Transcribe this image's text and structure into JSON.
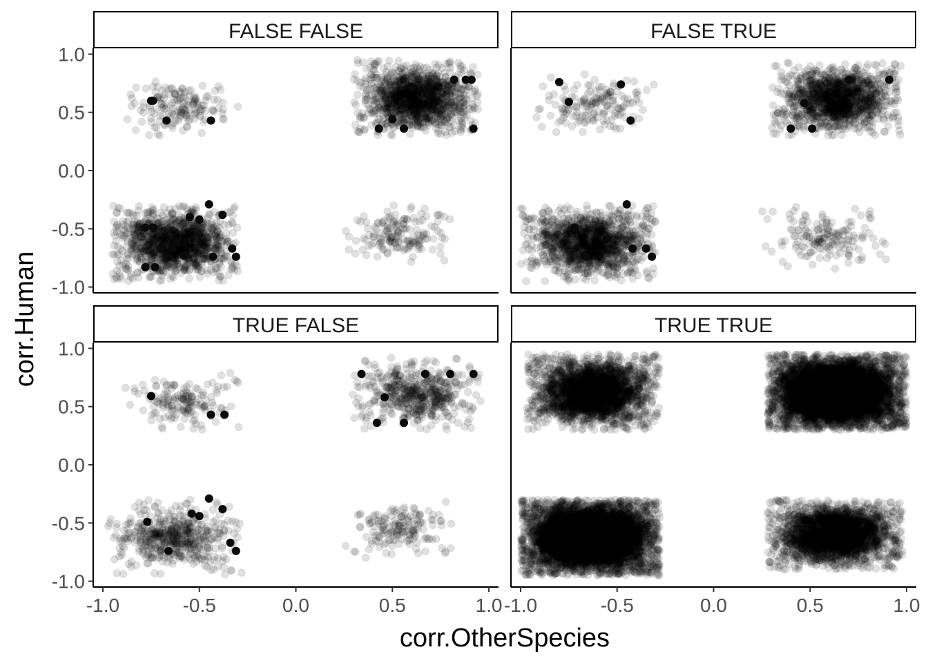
{
  "chart_data": {
    "type": "scatter",
    "xlabel": "corr.OtherSpecies",
    "ylabel": "corr.Human",
    "xlim": [
      -1.05,
      1.05
    ],
    "ylim": [
      -1.05,
      1.05
    ],
    "x_ticks": [
      -1.0,
      -0.5,
      0.0,
      0.5,
      1.0
    ],
    "y_ticks": [
      -1.0,
      -0.5,
      0.0,
      0.5,
      1.0
    ],
    "x_tick_labels": [
      "-1.0",
      "-0.5",
      "0.0",
      "0.5",
      "1.0"
    ],
    "y_tick_labels": [
      "-1.0",
      "-0.5",
      "0.0",
      "0.5",
      "1.0"
    ],
    "grid": false,
    "facet_layout": "2x2",
    "point_color": "#000000",
    "point_alpha": 0.12,
    "facets": [
      {
        "label": "FALSE FALSE",
        "clusters": [
          {
            "x_range": [
              -0.95,
              -0.3
            ],
            "y_range": [
              -0.95,
              -0.3
            ],
            "density": "dense"
          },
          {
            "x_range": [
              0.3,
              0.95
            ],
            "y_range": [
              0.3,
              0.95
            ],
            "density": "dense"
          },
          {
            "x_range": [
              -0.9,
              -0.3
            ],
            "y_range": [
              0.3,
              0.8
            ],
            "density": "sparse"
          },
          {
            "x_range": [
              0.25,
              0.8
            ],
            "y_range": [
              -0.8,
              -0.3
            ],
            "density": "sparse"
          }
        ],
        "opaque_points": [
          [
            -0.75,
            0.6
          ],
          [
            -0.74,
            0.6
          ],
          [
            -0.67,
            0.43
          ],
          [
            -0.44,
            0.43
          ],
          [
            -0.45,
            -0.29
          ],
          [
            -0.5,
            -0.42
          ],
          [
            -0.55,
            -0.4
          ],
          [
            -0.62,
            -0.62
          ],
          [
            -0.7,
            -0.67
          ],
          [
            -0.78,
            -0.49
          ],
          [
            -0.74,
            -0.49
          ],
          [
            -0.66,
            -0.74
          ],
          [
            -0.64,
            -0.67
          ],
          [
            -0.58,
            -0.73
          ],
          [
            -0.43,
            -0.74
          ],
          [
            -0.33,
            -0.67
          ],
          [
            -0.31,
            -0.74
          ],
          [
            -0.78,
            -0.83
          ],
          [
            -0.73,
            -0.83
          ],
          [
            -0.38,
            -0.38
          ],
          [
            0.43,
            0.36
          ],
          [
            0.56,
            0.36
          ],
          [
            0.5,
            0.44
          ],
          [
            0.55,
            0.58
          ],
          [
            0.68,
            0.7
          ],
          [
            0.82,
            0.78
          ],
          [
            0.88,
            0.78
          ],
          [
            0.91,
            0.78
          ],
          [
            0.92,
            0.36
          ],
          [
            0.6,
            0.72
          ]
        ]
      },
      {
        "label": "FALSE TRUE",
        "clusters": [
          {
            "x_range": [
              -1.0,
              -0.3
            ],
            "y_range": [
              -0.95,
              -0.3
            ],
            "density": "dense"
          },
          {
            "x_range": [
              0.3,
              0.97
            ],
            "y_range": [
              0.3,
              0.93
            ],
            "density": "dense"
          },
          {
            "x_range": [
              -0.95,
              -0.3
            ],
            "y_range": [
              0.3,
              0.85
            ],
            "density": "sparse"
          },
          {
            "x_range": [
              0.25,
              0.9
            ],
            "y_range": [
              -0.85,
              -0.3
            ],
            "density": "sparse"
          }
        ],
        "opaque_points": [
          [
            -0.75,
            0.59
          ],
          [
            -0.43,
            0.43
          ],
          [
            -0.8,
            0.76
          ],
          [
            -0.48,
            0.74
          ],
          [
            -0.45,
            -0.29
          ],
          [
            -0.42,
            -0.67
          ],
          [
            -0.72,
            -0.49
          ],
          [
            -0.66,
            -0.74
          ],
          [
            -0.35,
            -0.67
          ],
          [
            -0.32,
            -0.74
          ],
          [
            0.47,
            0.58
          ],
          [
            0.51,
            0.36
          ],
          [
            0.7,
            0.78
          ],
          [
            0.91,
            0.78
          ],
          [
            0.4,
            0.36
          ]
        ]
      },
      {
        "label": "TRUE FALSE",
        "clusters": [
          {
            "x_range": [
              -0.98,
              -0.28
            ],
            "y_range": [
              -0.95,
              -0.3
            ],
            "density": "medium"
          },
          {
            "x_range": [
              0.28,
              0.97
            ],
            "y_range": [
              0.3,
              0.92
            ],
            "density": "medium"
          },
          {
            "x_range": [
              -0.9,
              -0.28
            ],
            "y_range": [
              0.3,
              0.8
            ],
            "density": "sparse"
          },
          {
            "x_range": [
              0.25,
              0.82
            ],
            "y_range": [
              -0.8,
              -0.3
            ],
            "density": "sparse"
          }
        ],
        "opaque_points": [
          [
            -0.75,
            0.59
          ],
          [
            -0.44,
            0.43
          ],
          [
            -0.37,
            0.43
          ],
          [
            -0.45,
            -0.29
          ],
          [
            -0.54,
            -0.42
          ],
          [
            -0.5,
            -0.44
          ],
          [
            -0.38,
            -0.38
          ],
          [
            -0.77,
            -0.49
          ],
          [
            -0.66,
            -0.74
          ],
          [
            -0.34,
            -0.67
          ],
          [
            -0.31,
            -0.74
          ],
          [
            0.34,
            0.78
          ],
          [
            0.46,
            0.58
          ],
          [
            0.42,
            0.36
          ],
          [
            0.56,
            0.36
          ],
          [
            0.67,
            0.78
          ],
          [
            0.8,
            0.78
          ],
          [
            0.92,
            0.78
          ]
        ]
      },
      {
        "label": "TRUE TRUE",
        "clusters": [
          {
            "x_range": [
              -1.0,
              -0.28
            ],
            "y_range": [
              -0.95,
              -0.3
            ],
            "density": "saturated"
          },
          {
            "x_range": [
              0.28,
              1.0
            ],
            "y_range": [
              0.3,
              0.95
            ],
            "density": "saturated"
          },
          {
            "x_range": [
              -0.97,
              -0.28
            ],
            "y_range": [
              0.3,
              0.95
            ],
            "density": "heavy"
          },
          {
            "x_range": [
              0.28,
              0.98
            ],
            "y_range": [
              -0.9,
              -0.3
            ],
            "density": "heavy"
          }
        ],
        "opaque_points": []
      }
    ]
  }
}
